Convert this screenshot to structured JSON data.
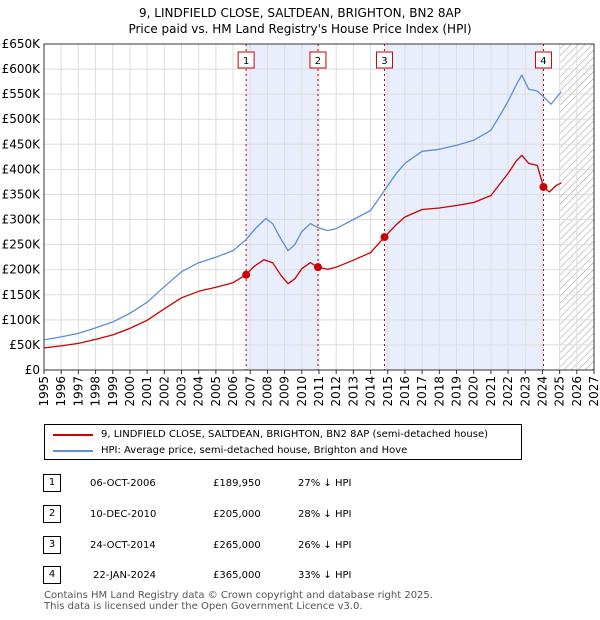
{
  "title": {
    "line1": "9, LINDFIELD CLOSE, SALTDEAN, BRIGHTON, BN2 8AP",
    "line2": "Price paid vs. HM Land Registry's House Price Index (HPI)"
  },
  "chart_data": {
    "type": "line",
    "xlim": [
      1995,
      2027
    ],
    "ylim": [
      0,
      650000
    ],
    "y_ticks": [
      0,
      50000,
      100000,
      150000,
      200000,
      250000,
      300000,
      350000,
      400000,
      450000,
      500000,
      550000,
      600000,
      650000
    ],
    "y_tick_labels": [
      "£0",
      "£50K",
      "£100K",
      "£150K",
      "£200K",
      "£250K",
      "£300K",
      "£350K",
      "£400K",
      "£450K",
      "£500K",
      "£550K",
      "£600K",
      "£650K"
    ],
    "x_ticks": [
      1995,
      1996,
      1997,
      1998,
      1999,
      2000,
      2001,
      2002,
      2003,
      2004,
      2005,
      2006,
      2007,
      2008,
      2009,
      2010,
      2011,
      2012,
      2013,
      2014,
      2015,
      2016,
      2017,
      2018,
      2019,
      2020,
      2021,
      2022,
      2023,
      2024,
      2025,
      2026,
      2027
    ],
    "grid": true,
    "shaded_spans": [
      [
        2006.76,
        2010.94
      ],
      [
        2014.81,
        2024.06
      ]
    ],
    "future_hatch_start": 2025.0,
    "series": [
      {
        "name": "9, LINDFIELD CLOSE, SALTDEAN, BRIGHTON, BN2 8AP (semi-detached house)",
        "color": "#cc0000",
        "x": [
          1995,
          1996,
          1997,
          1998,
          1999,
          2000,
          2001,
          2002,
          2003,
          2004,
          2005,
          2006,
          2006.76,
          2007.2,
          2007.8,
          2008.3,
          2008.8,
          2009.2,
          2009.6,
          2010.0,
          2010.5,
          2010.94,
          2011.5,
          2012,
          2013,
          2014,
          2014.81,
          2015.5,
          2016,
          2017,
          2018,
          2019,
          2020,
          2021,
          2021.5,
          2022,
          2022.5,
          2022.8,
          2023.2,
          2023.7,
          2024.06,
          2024.4,
          2024.8,
          2025.1
        ],
        "y": [
          44000,
          48000,
          53000,
          61000,
          70000,
          83000,
          99000,
          122000,
          144000,
          157000,
          165000,
          174000,
          189950,
          206000,
          220000,
          214000,
          188000,
          172000,
          182000,
          202000,
          214000,
          205000,
          201000,
          205000,
          219000,
          234000,
          265000,
          290000,
          305000,
          320000,
          323000,
          328000,
          334000,
          348000,
          370000,
          392000,
          418000,
          428000,
          412000,
          408000,
          365000,
          355000,
          368000,
          373000
        ]
      },
      {
        "name": "HPI: Average price, semi-detached house, Brighton and Hove",
        "color": "#5b8fd6",
        "x": [
          1995,
          1996,
          1997,
          1998,
          1999,
          2000,
          2001,
          2002,
          2003,
          2004,
          2005,
          2006,
          2006.76,
          2007.3,
          2007.9,
          2008.3,
          2008.8,
          2009.2,
          2009.6,
          2010.0,
          2010.5,
          2010.94,
          2011.5,
          2012,
          2013,
          2014,
          2014.81,
          2015.5,
          2016,
          2017,
          2018,
          2019,
          2020,
          2021,
          2021.5,
          2022,
          2022.5,
          2022.8,
          2023.2,
          2023.7,
          2024.06,
          2024.5,
          2025.1
        ],
        "y": [
          60000,
          66000,
          73000,
          84000,
          96000,
          113000,
          135000,
          166000,
          196000,
          214000,
          225000,
          238000,
          260000,
          282000,
          302000,
          292000,
          260000,
          238000,
          250000,
          276000,
          292000,
          284000,
          278000,
          282000,
          300000,
          318000,
          358000,
          392000,
          412000,
          436000,
          440000,
          448000,
          458000,
          478000,
          506000,
          536000,
          570000,
          588000,
          560000,
          556000,
          545000,
          530000,
          555000
        ]
      }
    ],
    "sales": [
      {
        "label": "1",
        "x": 2006.76,
        "y": 189950
      },
      {
        "label": "2",
        "x": 2010.94,
        "y": 205000
      },
      {
        "label": "3",
        "x": 2014.81,
        "y": 265000
      },
      {
        "label": "4",
        "x": 2024.06,
        "y": 365000
      }
    ]
  },
  "legend": {
    "items": [
      {
        "label": "9, LINDFIELD CLOSE, SALTDEAN, BRIGHTON, BN2 8AP (semi-detached house)",
        "color": "#cc0000"
      },
      {
        "label": "HPI: Average price, semi-detached house, Brighton and Hove",
        "color": "#5b8fd6"
      }
    ]
  },
  "transactions": [
    {
      "num": "1",
      "date": "06-OCT-2006",
      "price": "£189,950",
      "hpi": "27% ↓ HPI"
    },
    {
      "num": "2",
      "date": "10-DEC-2010",
      "price": "£205,000",
      "hpi": "28% ↓ HPI"
    },
    {
      "num": "3",
      "date": "24-OCT-2014",
      "price": "£265,000",
      "hpi": "26% ↓ HPI"
    },
    {
      "num": "4",
      "date": "22-JAN-2024",
      "price": "£365,000",
      "hpi": "33% ↓ HPI"
    }
  ],
  "footer": {
    "line1": "Contains HM Land Registry data © Crown copyright and database right 2025.",
    "line2": "This data is licensed under the Open Government Licence v3.0."
  }
}
